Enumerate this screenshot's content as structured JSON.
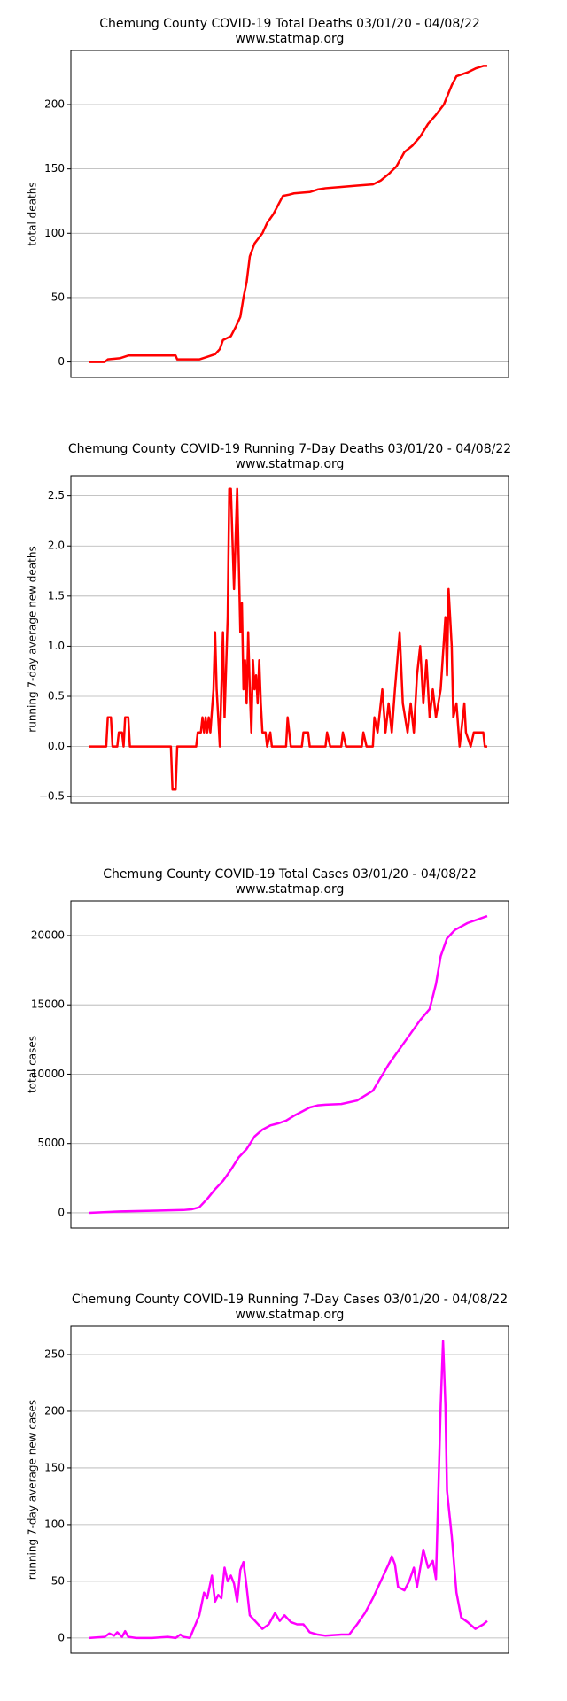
{
  "chart_data": [
    {
      "type": "line",
      "title": "Chemung County COVID-19 Total Deaths 03/01/20 - 04/08/22",
      "subtitle": "www.statmap.org",
      "y_label": "total deaths",
      "color": "#ff0000",
      "grid": true,
      "xlim": [
        -0.14,
        27.6
      ],
      "ylim": [
        -12,
        242
      ],
      "yticks": [
        0,
        50,
        100,
        150,
        200
      ],
      "x": [
        1,
        2,
        2.2,
        3,
        3.5,
        4,
        6.5,
        6.6,
        8,
        8.5,
        9,
        9.3,
        9.5,
        10,
        10.3,
        10.6,
        10.8,
        11,
        11.2,
        11.5,
        12,
        12.3,
        12.7,
        13,
        13.3,
        13.7,
        14,
        15,
        15.5,
        16,
        17,
        18,
        19,
        19.5,
        20,
        20.5,
        21,
        21.5,
        22,
        22.5,
        23,
        23.5,
        24,
        24.3,
        25,
        25.5,
        26,
        26.25
      ],
      "values": [
        0,
        0,
        2,
        3,
        5,
        5,
        5,
        2,
        2,
        4,
        6,
        10,
        17,
        20,
        27,
        35,
        50,
        62,
        82,
        92,
        100,
        108,
        115,
        122,
        129,
        130,
        131,
        132,
        134,
        135,
        136,
        137,
        138,
        141,
        146,
        152,
        163,
        168,
        175,
        185,
        192,
        200,
        215,
        222,
        225,
        228,
        230,
        230
      ]
    },
    {
      "type": "line",
      "title": "Chemung County COVID-19 Running 7-Day Deaths 03/01/20 - 04/08/22",
      "subtitle": "www.statmap.org",
      "y_label": "running 7-day average new deaths",
      "color": "#ff0000",
      "grid": true,
      "xlim": [
        -0.14,
        27.6
      ],
      "ylim": [
        -0.56,
        2.7
      ],
      "yticks": [
        {
          "value": -0.5,
          "label": "−0.5"
        },
        {
          "value": 0,
          "label": "0.0"
        },
        0.5,
        {
          "value": 1,
          "label": "1.0"
        },
        1.5,
        {
          "value": 2,
          "label": "2.0"
        },
        2.5
      ],
      "x": [
        1,
        2.1,
        2.2,
        2.4,
        2.5,
        2.8,
        2.9,
        3.1,
        3.2,
        3.3,
        3.5,
        3.6,
        6.2,
        6.3,
        6.5,
        6.6,
        7.8,
        7.9,
        8.1,
        8.2,
        8.3,
        8.4,
        8.5,
        8.6,
        8.7,
        8.9,
        9,
        9.1,
        9.2,
        9.3,
        9.5,
        9.6,
        9.8,
        9.9,
        10,
        10.2,
        10.4,
        10.5,
        10.6,
        10.7,
        10.8,
        10.9,
        11,
        11.1,
        11.2,
        11.3,
        11.4,
        11.5,
        11.6,
        11.7,
        11.8,
        11.9,
        12,
        12.2,
        12.3,
        12.5,
        12.6,
        13.5,
        13.6,
        13.8,
        14.5,
        14.6,
        14.9,
        15,
        16,
        16.1,
        16.3,
        17,
        17.1,
        17.3,
        18.3,
        18.4,
        18.6,
        19,
        19.1,
        19.3,
        19.6,
        19.8,
        20,
        20.2,
        20.4,
        20.7,
        20.9,
        21.2,
        21.4,
        21.6,
        21.8,
        22,
        22.2,
        22.4,
        22.6,
        22.8,
        23,
        23.3,
        23.6,
        23.7,
        23.8,
        24,
        24.1,
        24.3,
        24.5,
        24.8,
        24.9,
        25.2,
        25.4,
        26,
        26.1,
        26.25
      ],
      "values": [
        0,
        0,
        0.29,
        0.29,
        0,
        0,
        0.14,
        0.14,
        0,
        0.29,
        0.29,
        0,
        0,
        -0.43,
        -0.43,
        0,
        0,
        0.14,
        0.14,
        0.29,
        0.14,
        0.29,
        0.14,
        0.29,
        0.14,
        0.57,
        1.14,
        0.57,
        0.29,
        0,
        1.14,
        0.29,
        1.29,
        2.57,
        2.57,
        1.57,
        2.57,
        1.86,
        1.14,
        1.43,
        0.57,
        0.86,
        0.43,
        1.14,
        0.57,
        0.14,
        0.86,
        0.57,
        0.71,
        0.43,
        0.86,
        0.43,
        0.14,
        0.14,
        0,
        0.14,
        0,
        0,
        0.29,
        0,
        0,
        0.14,
        0.14,
        0,
        0,
        0.14,
        0,
        0,
        0.14,
        0,
        0,
        0.14,
        0,
        0,
        0.29,
        0.14,
        0.57,
        0.14,
        0.43,
        0.14,
        0.57,
        1.14,
        0.43,
        0.14,
        0.43,
        0.14,
        0.71,
        1,
        0.43,
        0.86,
        0.29,
        0.57,
        0.29,
        0.57,
        1.29,
        0.71,
        1.57,
        1,
        0.29,
        0.43,
        0,
        0.43,
        0.14,
        0,
        0.14,
        0.14,
        0,
        0
      ]
    },
    {
      "type": "line",
      "title": "Chemung County COVID-19 Total Cases 03/01/20 - 04/08/22",
      "subtitle": "www.statmap.org",
      "y_label": "total cases",
      "color": "#ff00ff",
      "grid": true,
      "xlim": [
        -0.14,
        27.6
      ],
      "ylim": [
        -1090,
        22490
      ],
      "yticks": [
        0,
        5000,
        10000,
        15000,
        20000
      ],
      "x": [
        1,
        3,
        5,
        7,
        7.5,
        8,
        8.5,
        9,
        9.5,
        10,
        10.5,
        11,
        11.5,
        12,
        12.5,
        13,
        13.5,
        14,
        14.5,
        15,
        15.5,
        16,
        17,
        18,
        19,
        20,
        21,
        22,
        22.6,
        23,
        23.3,
        23.7,
        24.2,
        25,
        26.25
      ],
      "values": [
        0,
        100,
        150,
        200,
        250,
        400,
        1000,
        1700,
        2300,
        3100,
        4000,
        4600,
        5500,
        6000,
        6300,
        6450,
        6650,
        7000,
        7300,
        7600,
        7750,
        7800,
        7850,
        8100,
        8800,
        10700,
        12300,
        13900,
        14700,
        16500,
        18500,
        19800,
        20400,
        20900,
        21400
      ]
    },
    {
      "type": "line",
      "title": "Chemung County COVID-19 Running 7-Day Cases 03/01/20 - 04/08/22",
      "subtitle": "www.statmap.org",
      "y_label": "running 7-day average new cases",
      "color": "#ff00ff",
      "grid": true,
      "xlim": [
        -0.14,
        27.6
      ],
      "ylim": [
        -13.4,
        275
      ],
      "yticks": [
        0,
        50,
        100,
        150,
        200,
        250
      ],
      "x": [
        1,
        2,
        2.3,
        2.6,
        2.8,
        3.1,
        3.3,
        3.5,
        4,
        5,
        6,
        6.5,
        6.8,
        7,
        7.4,
        7.7,
        8,
        8.3,
        8.5,
        8.8,
        9,
        9.2,
        9.4,
        9.6,
        9.8,
        10,
        10.2,
        10.4,
        10.6,
        10.8,
        11,
        11.2,
        11.6,
        12,
        12.4,
        12.8,
        13.1,
        13.4,
        13.8,
        14.2,
        14.6,
        15,
        15.5,
        16,
        17,
        17.5,
        18,
        18.5,
        19,
        19.5,
        20,
        20.2,
        20.4,
        20.6,
        21,
        21.3,
        21.6,
        21.8,
        22.2,
        22.5,
        22.8,
        23,
        23.3,
        23.45,
        23.6,
        23.7,
        24,
        24.3,
        24.6,
        25,
        25.5,
        26,
        26.25
      ],
      "values": [
        0,
        1,
        4,
        2,
        5,
        1,
        6,
        1,
        0,
        0,
        1,
        0,
        3,
        1,
        0,
        10,
        20,
        40,
        35,
        55,
        32,
        38,
        35,
        62,
        50,
        55,
        48,
        32,
        60,
        67,
        45,
        20,
        14,
        8,
        12,
        22,
        15,
        20,
        14,
        12,
        12,
        5,
        3,
        2,
        3,
        3,
        12,
        22,
        35,
        50,
        65,
        72,
        65,
        45,
        42,
        50,
        62,
        45,
        78,
        62,
        68,
        52,
        205,
        262,
        205,
        130,
        90,
        40,
        18,
        14,
        8,
        12,
        15
      ]
    }
  ]
}
